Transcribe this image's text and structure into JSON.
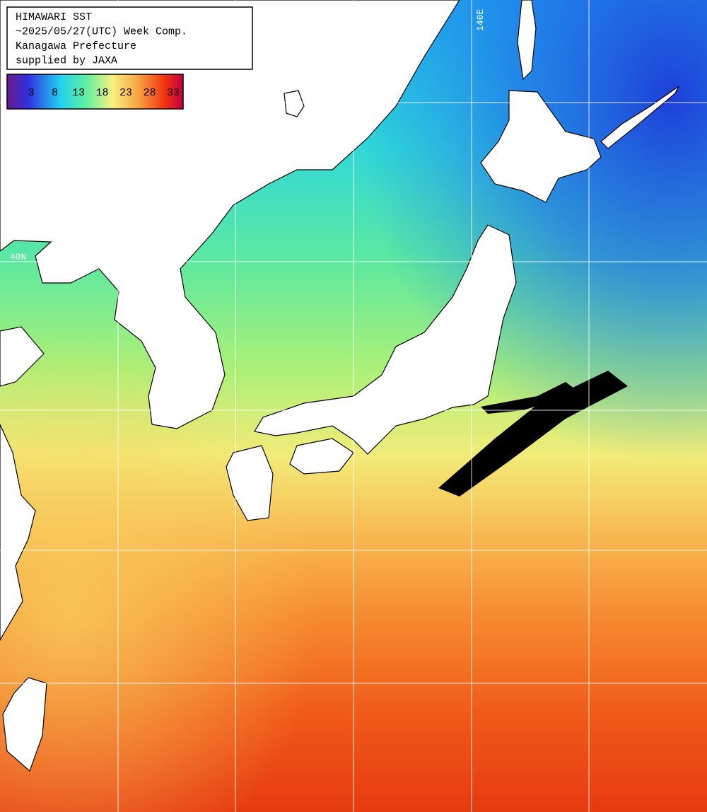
{
  "header": {
    "lines": [
      "HIMAWARI SST",
      "~2025/05/27(UTC) Week Comp.",
      "Kanagawa Prefecture",
      "supplied by JAXA"
    ]
  },
  "legend": {
    "ticks": [
      3,
      8,
      13,
      18,
      23,
      28,
      33
    ]
  },
  "grid_labels": {
    "lat": "40N",
    "lon": "140E"
  }
}
